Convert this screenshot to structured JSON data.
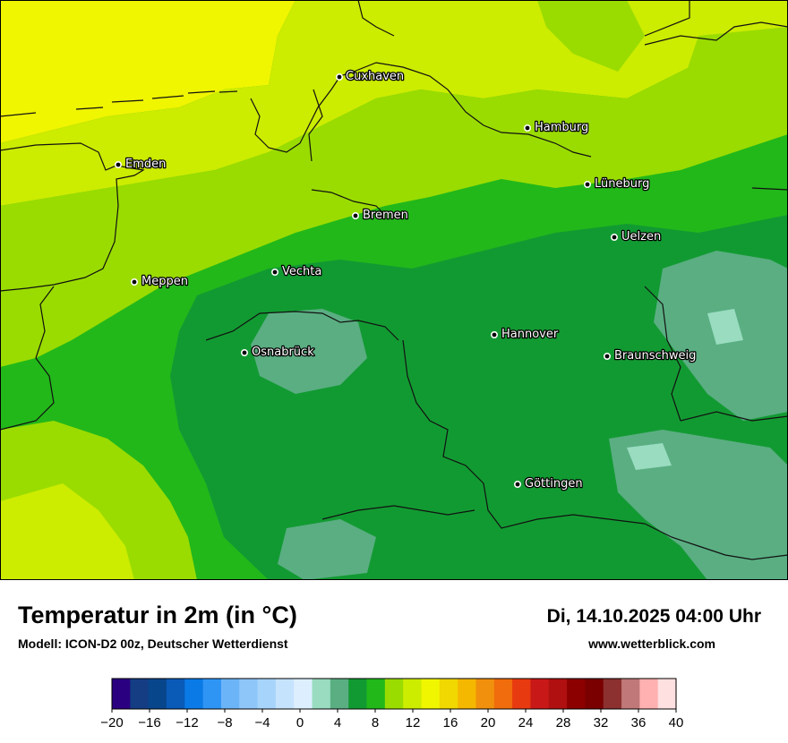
{
  "map": {
    "cities": [
      {
        "name": "Cuxhaven"
      },
      {
        "name": "Hamburg"
      },
      {
        "name": "Emden"
      },
      {
        "name": "Lüneburg"
      },
      {
        "name": "Bremen"
      },
      {
        "name": "Uelzen"
      },
      {
        "name": "Vechta"
      },
      {
        "name": "Meppen"
      },
      {
        "name": "Hannover"
      },
      {
        "name": "Osnabrück"
      },
      {
        "name": "Braunschweig"
      },
      {
        "name": "Göttingen"
      }
    ]
  },
  "footer": {
    "title": "Temperatur in 2m (in °C)",
    "datetime": "Di, 14.10.2025 04:00 Uhr",
    "model": "Modell: ICON-D2 00z, Deutscher Wetterdienst",
    "site": "www.wetterblick.com"
  },
  "legend": {
    "tick_labels": [
      "−20",
      "−16",
      "−12",
      "−8",
      "−4",
      "0",
      "4",
      "8",
      "12",
      "16",
      "20",
      "24",
      "28",
      "32",
      "36",
      "40"
    ],
    "colors": [
      "#2a0080",
      "#143d84",
      "#08468c",
      "#0a5ab8",
      "#0a7ae6",
      "#2e95f5",
      "#6cb4f8",
      "#8fc6fa",
      "#a7d4fb",
      "#c6e3fd",
      "#ddefff",
      "#99dcc0",
      "#5aae82",
      "#129a32",
      "#22b81a",
      "#9adc00",
      "#ccec00",
      "#f0f500",
      "#f0d800",
      "#f5b800",
      "#f0900c",
      "#f06c0c",
      "#e83a10",
      "#c81818",
      "#b01010",
      "#8c0000",
      "#7a0000",
      "#8c3030",
      "#c07878",
      "#ffb0b0",
      "#ffe0e0"
    ]
  }
}
